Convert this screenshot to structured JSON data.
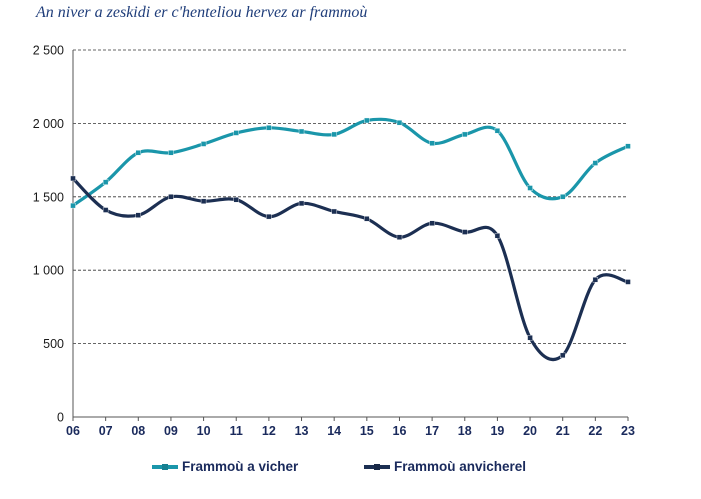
{
  "title": "An niver a zeskidi er c'henteliou hervez ar frammoù",
  "chart_data": {
    "type": "line",
    "categories": [
      "06",
      "07",
      "08",
      "09",
      "10",
      "11",
      "12",
      "13",
      "14",
      "15",
      "16",
      "17",
      "18",
      "19",
      "20",
      "21",
      "22",
      "23"
    ],
    "series": [
      {
        "name": "Frammoù a vicher",
        "color": "#1a96aa",
        "values": [
          1440,
          1600,
          1800,
          1800,
          1860,
          1935,
          1970,
          1945,
          1925,
          2020,
          2005,
          1865,
          1925,
          1950,
          1560,
          1500,
          1730,
          1845
        ]
      },
      {
        "name": "Frammoù anvicherel",
        "color": "#1c2f52",
        "values": [
          1625,
          1410,
          1375,
          1500,
          1470,
          1480,
          1365,
          1455,
          1400,
          1350,
          1225,
          1320,
          1260,
          1235,
          540,
          420,
          935,
          920
        ]
      }
    ],
    "y_ticks": [
      "0",
      "500",
      "1 000",
      "1 500",
      "2 000",
      "2 500"
    ],
    "ylim": [
      0,
      2500
    ],
    "grid": "horizontal dashed",
    "legend_position": "bottom"
  }
}
